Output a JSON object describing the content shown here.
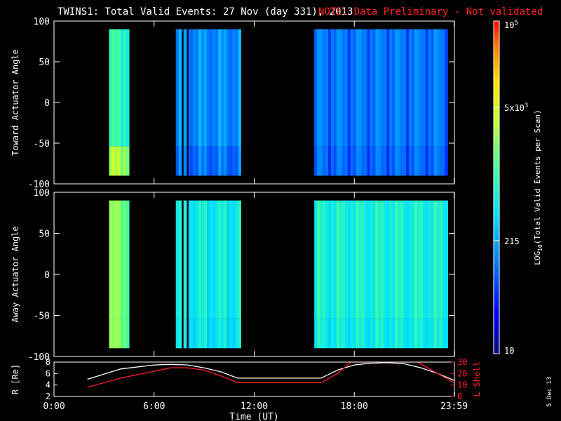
{
  "title": "TWINS1: Total Valid Events: 27 Nov (day 331), 2013",
  "note": "NOTE: Data Preliminary - Not validated",
  "colors": {
    "background": "#000000",
    "text": "#ffffff",
    "note": "#ff2020",
    "r_line": "#ffffff",
    "l_line": "#ff2020",
    "gap": "#000000"
  },
  "chart_data": [
    {
      "type": "heatmap",
      "id": "toward",
      "ylabel": "Toward Actuator Angle",
      "ylim": [
        -100,
        100
      ],
      "yticks": [
        100,
        50,
        0,
        -50,
        -100
      ],
      "xlim": [
        0,
        24
      ],
      "segments": [
        {
          "start": 3.3,
          "end": 4.5,
          "level": 0.52,
          "low_level": 0.66
        },
        {
          "start": 7.3,
          "end": 11.2,
          "level": 0.3,
          "low_level": 0.26
        },
        {
          "start": 15.6,
          "end": 23.6,
          "level": 0.27,
          "low_level": 0.25
        }
      ],
      "dark_lines": [
        7.7,
        8.0
      ]
    },
    {
      "type": "heatmap",
      "id": "away",
      "ylabel": "Away Actuator Angle",
      "ylim": [
        -100,
        100
      ],
      "yticks": [
        100,
        50,
        0,
        -50,
        -100
      ],
      "xlim": [
        0,
        24
      ],
      "segments": [
        {
          "start": 3.3,
          "end": 4.5,
          "level": 0.62,
          "low_level": 0.62
        },
        {
          "start": 7.3,
          "end": 11.2,
          "level": 0.46,
          "low_level": 0.44
        },
        {
          "start": 15.6,
          "end": 23.6,
          "level": 0.48,
          "low_level": 0.46
        }
      ],
      "dark_lines": [
        7.7,
        8.0
      ]
    },
    {
      "type": "line",
      "id": "orbit",
      "ylabel": "R [Re]",
      "ylabel_right": "L Shell",
      "xlabel": "Time (UT)",
      "xlim": [
        0,
        24
      ],
      "ylim": [
        2,
        8
      ],
      "yticks": [
        2,
        4,
        6,
        8
      ],
      "ylim_right": [
        0,
        30
      ],
      "yticks_right": [
        0,
        10,
        20,
        30
      ],
      "x_tick_labels": [
        "0:00",
        "6:00",
        "12:00",
        "18:00",
        "23:59"
      ],
      "x_tick_values": [
        0,
        6,
        12,
        18,
        23.98
      ],
      "series": [
        {
          "name": "R",
          "axis": "left",
          "x": [
            2,
            4,
            6,
            7,
            8,
            9,
            10,
            11,
            12,
            13,
            14,
            15,
            16,
            17,
            18,
            19,
            20,
            21,
            22,
            23,
            23.98
          ],
          "y": [
            5.0,
            6.8,
            7.5,
            7.6,
            7.5,
            7.0,
            6.3,
            5.2,
            5.2,
            5.2,
            5.2,
            5.2,
            5.2,
            6.6,
            7.5,
            7.8,
            7.9,
            7.7,
            7.0,
            6.0,
            4.8
          ]
        },
        {
          "name": "L",
          "axis": "right",
          "x": [
            2,
            4,
            6,
            7,
            8,
            9,
            10,
            11,
            12,
            13,
            14,
            15,
            16,
            17,
            17.8,
            21.8,
            23,
            23.98
          ],
          "y": [
            8,
            16,
            22,
            25,
            25,
            23,
            18,
            12,
            12,
            12,
            12,
            12,
            12,
            20,
            30,
            30,
            20,
            12
          ]
        }
      ]
    }
  ],
  "colorbar": {
    "label": "LOG10(Total Valid Events per Scan)",
    "label_main": "LOG",
    "label_sub": "10",
    "label_rest": "(Total Valid Events per Scan)",
    "ticks": [
      {
        "base": "10",
        "exp": "5",
        "frac": 1.0
      },
      {
        "base": "5x10",
        "exp": "3",
        "frac": 0.74
      },
      {
        "base": "215",
        "exp": "",
        "frac": 0.34
      },
      {
        "base": "10",
        "exp": "",
        "frac": 0.0
      }
    ]
  },
  "date_stamp": "5 Dec 13"
}
